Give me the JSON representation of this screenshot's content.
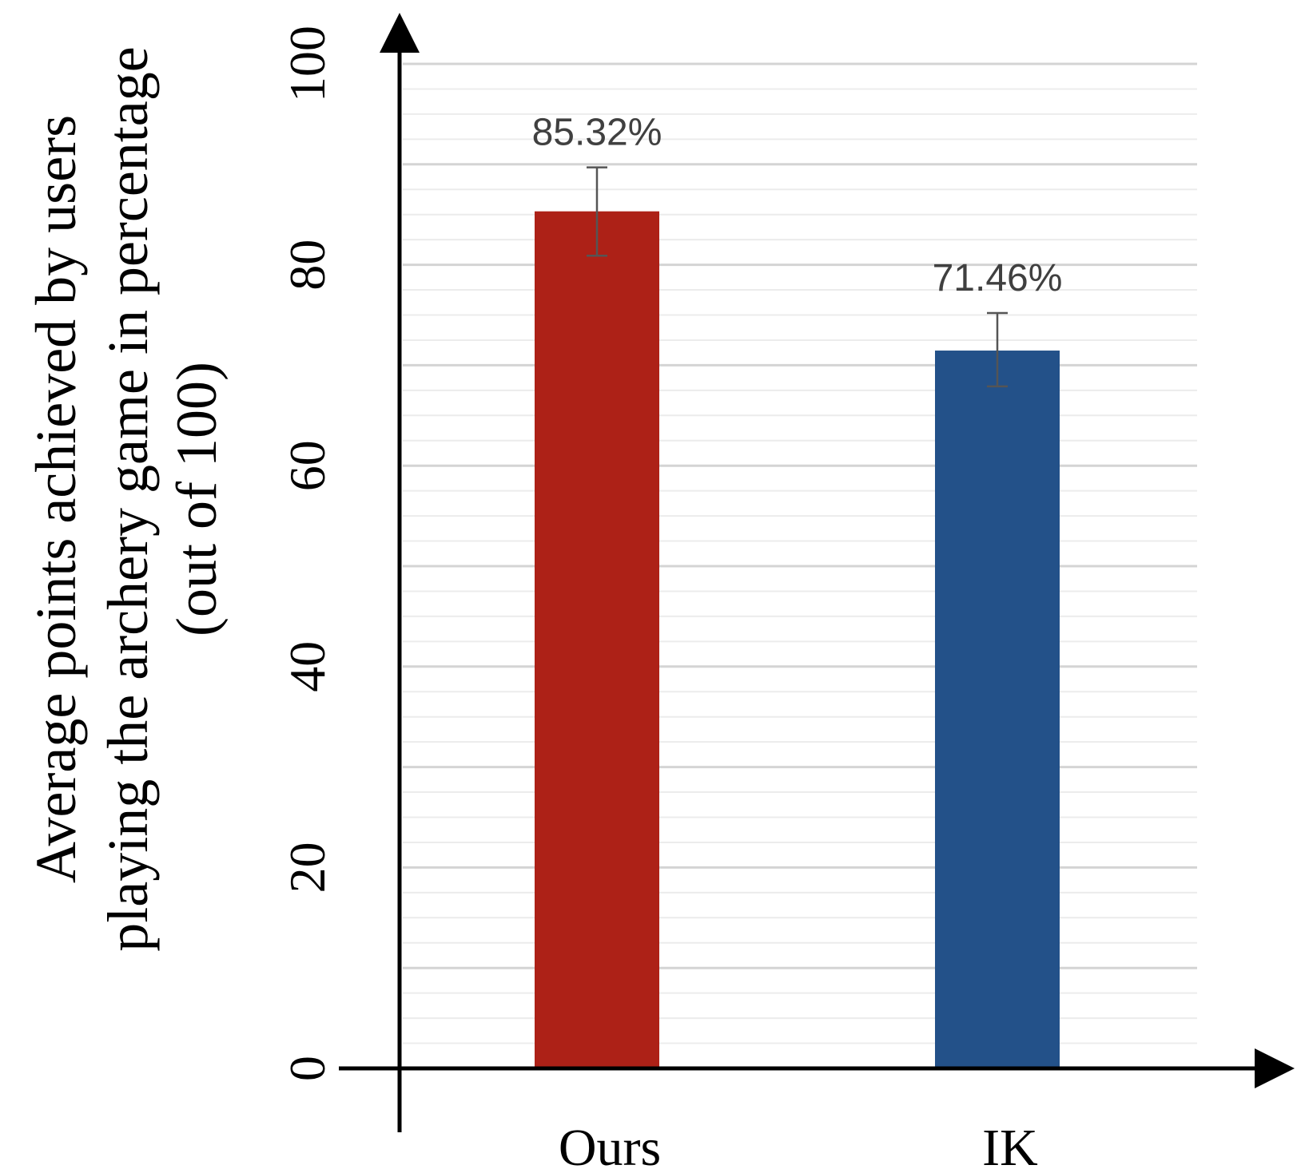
{
  "chart_data": {
    "type": "bar",
    "ylabel_lines": [
      "Average points achieved by users",
      "playing the archery game in percentage",
      "(out of 100)"
    ],
    "categories": [
      "Ours",
      "IK"
    ],
    "values": [
      85.32,
      71.46
    ],
    "data_labels": [
      "85.32%",
      "71.46%"
    ],
    "error_bars": [
      {
        "low": 80.9,
        "high": 89.7
      },
      {
        "low": 67.9,
        "high": 75.2
      }
    ],
    "colors": [
      "#ad2117",
      "#235189"
    ],
    "ylim": [
      0,
      100
    ],
    "yticks": [
      0,
      20,
      40,
      60,
      80,
      100
    ],
    "grid": true
  }
}
